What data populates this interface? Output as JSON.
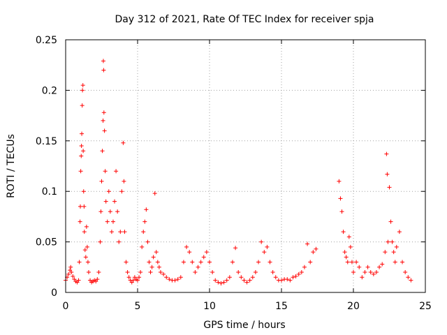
{
  "chart_data": {
    "type": "scatter",
    "title": "Day 312 of 2021, Rate Of TEC Index for receiver spja",
    "xlabel": "GPS time / hours",
    "ylabel": "ROTI / TECUs",
    "xlim": [
      0,
      25
    ],
    "ylim": [
      0,
      0.25
    ],
    "xticks": [
      0,
      5,
      10,
      15,
      20,
      25
    ],
    "xtick_labels": [
      "0",
      "5",
      "10",
      "15",
      "20",
      "25"
    ],
    "yticks": [
      0,
      0.05,
      0.1,
      0.15,
      0.2,
      0.25
    ],
    "ytick_labels": [
      "0",
      "0.05",
      "0.1",
      "0.15",
      "0.2",
      "0.25"
    ],
    "grid": true,
    "marker": "+",
    "series": [
      {
        "name": "ROTI",
        "color": "#ff0000",
        "points": [
          [
            0.0,
            0.012
          ],
          [
            0.1,
            0.015
          ],
          [
            0.2,
            0.018
          ],
          [
            0.3,
            0.022
          ],
          [
            0.35,
            0.025
          ],
          [
            0.4,
            0.02
          ],
          [
            0.5,
            0.016
          ],
          [
            0.6,
            0.013
          ],
          [
            0.7,
            0.011
          ],
          [
            0.8,
            0.01
          ],
          [
            0.9,
            0.012
          ],
          [
            0.95,
            0.03
          ],
          [
            1.0,
            0.07
          ],
          [
            1.02,
            0.085
          ],
          [
            1.05,
            0.12
          ],
          [
            1.08,
            0.135
          ],
          [
            1.1,
            0.145
          ],
          [
            1.12,
            0.157
          ],
          [
            1.15,
            0.185
          ],
          [
            1.17,
            0.2
          ],
          [
            1.2,
            0.205
          ],
          [
            1.22,
            0.14
          ],
          [
            1.25,
            0.1
          ],
          [
            1.28,
            0.085
          ],
          [
            1.3,
            0.06
          ],
          [
            1.35,
            0.042
          ],
          [
            1.4,
            0.035
          ],
          [
            1.45,
            0.065
          ],
          [
            1.5,
            0.045
          ],
          [
            1.55,
            0.03
          ],
          [
            1.6,
            0.02
          ],
          [
            1.7,
            0.012
          ],
          [
            1.8,
            0.01
          ],
          [
            1.9,
            0.011
          ],
          [
            2.0,
            0.012
          ],
          [
            2.1,
            0.011
          ],
          [
            2.2,
            0.013
          ],
          [
            2.3,
            0.02
          ],
          [
            2.4,
            0.05
          ],
          [
            2.45,
            0.08
          ],
          [
            2.5,
            0.11
          ],
          [
            2.55,
            0.14
          ],
          [
            2.6,
            0.17
          ],
          [
            2.62,
            0.229
          ],
          [
            2.64,
            0.22
          ],
          [
            2.66,
            0.178
          ],
          [
            2.7,
            0.16
          ],
          [
            2.75,
            0.12
          ],
          [
            2.8,
            0.09
          ],
          [
            2.9,
            0.07
          ],
          [
            3.0,
            0.1
          ],
          [
            3.1,
            0.08
          ],
          [
            3.2,
            0.06
          ],
          [
            3.3,
            0.07
          ],
          [
            3.4,
            0.09
          ],
          [
            3.5,
            0.12
          ],
          [
            3.6,
            0.08
          ],
          [
            3.7,
            0.05
          ],
          [
            3.8,
            0.06
          ],
          [
            3.9,
            0.1
          ],
          [
            4.0,
            0.148
          ],
          [
            4.05,
            0.11
          ],
          [
            4.1,
            0.06
          ],
          [
            4.2,
            0.03
          ],
          [
            4.3,
            0.02
          ],
          [
            4.4,
            0.015
          ],
          [
            4.5,
            0.012
          ],
          [
            4.6,
            0.01
          ],
          [
            4.7,
            0.012
          ],
          [
            4.8,
            0.015
          ],
          [
            4.9,
            0.013
          ],
          [
            5.0,
            0.012
          ],
          [
            5.1,
            0.015
          ],
          [
            5.2,
            0.02
          ],
          [
            5.3,
            0.045
          ],
          [
            5.4,
            0.06
          ],
          [
            5.5,
            0.07
          ],
          [
            5.6,
            0.082
          ],
          [
            5.7,
            0.05
          ],
          [
            5.8,
            0.03
          ],
          [
            5.9,
            0.02
          ],
          [
            6.0,
            0.025
          ],
          [
            6.1,
            0.035
          ],
          [
            6.2,
            0.098
          ],
          [
            6.3,
            0.04
          ],
          [
            6.4,
            0.03
          ],
          [
            6.5,
            0.025
          ],
          [
            6.6,
            0.02
          ],
          [
            6.8,
            0.018
          ],
          [
            7.0,
            0.015
          ],
          [
            7.2,
            0.013
          ],
          [
            7.4,
            0.012
          ],
          [
            7.6,
            0.012
          ],
          [
            7.8,
            0.013
          ],
          [
            8.0,
            0.015
          ],
          [
            8.2,
            0.03
          ],
          [
            8.4,
            0.045
          ],
          [
            8.6,
            0.04
          ],
          [
            8.8,
            0.03
          ],
          [
            9.0,
            0.02
          ],
          [
            9.2,
            0.025
          ],
          [
            9.4,
            0.03
          ],
          [
            9.6,
            0.035
          ],
          [
            9.8,
            0.04
          ],
          [
            10.0,
            0.03
          ],
          [
            10.2,
            0.02
          ],
          [
            10.4,
            0.012
          ],
          [
            10.6,
            0.01
          ],
          [
            10.8,
            0.009
          ],
          [
            11.0,
            0.01
          ],
          [
            11.2,
            0.012
          ],
          [
            11.4,
            0.015
          ],
          [
            11.6,
            0.03
          ],
          [
            11.8,
            0.044
          ],
          [
            12.0,
            0.02
          ],
          [
            12.2,
            0.015
          ],
          [
            12.4,
            0.012
          ],
          [
            12.6,
            0.01
          ],
          [
            12.8,
            0.012
          ],
          [
            13.0,
            0.015
          ],
          [
            13.2,
            0.02
          ],
          [
            13.4,
            0.03
          ],
          [
            13.6,
            0.05
          ],
          [
            13.8,
            0.04
          ],
          [
            14.0,
            0.045
          ],
          [
            14.2,
            0.03
          ],
          [
            14.4,
            0.02
          ],
          [
            14.6,
            0.015
          ],
          [
            14.8,
            0.012
          ],
          [
            15.0,
            0.012
          ],
          [
            15.2,
            0.013
          ],
          [
            15.4,
            0.013
          ],
          [
            15.6,
            0.012
          ],
          [
            15.8,
            0.015
          ],
          [
            16.0,
            0.016
          ],
          [
            16.2,
            0.018
          ],
          [
            16.4,
            0.02
          ],
          [
            16.6,
            0.025
          ],
          [
            16.8,
            0.048
          ],
          [
            17.0,
            0.03
          ],
          [
            17.2,
            0.04
          ],
          [
            17.4,
            0.043
          ],
          [
            19.0,
            0.11
          ],
          [
            19.1,
            0.093
          ],
          [
            19.2,
            0.08
          ],
          [
            19.3,
            0.06
          ],
          [
            19.4,
            0.04
          ],
          [
            19.5,
            0.035
          ],
          [
            19.6,
            0.03
          ],
          [
            19.7,
            0.055
          ],
          [
            19.8,
            0.045
          ],
          [
            19.9,
            0.03
          ],
          [
            20.0,
            0.02
          ],
          [
            20.2,
            0.03
          ],
          [
            20.4,
            0.025
          ],
          [
            20.6,
            0.015
          ],
          [
            20.8,
            0.02
          ],
          [
            21.0,
            0.025
          ],
          [
            21.2,
            0.02
          ],
          [
            21.4,
            0.018
          ],
          [
            21.6,
            0.02
          ],
          [
            21.8,
            0.025
          ],
          [
            22.0,
            0.028
          ],
          [
            22.2,
            0.04
          ],
          [
            22.3,
            0.137
          ],
          [
            22.35,
            0.117
          ],
          [
            22.4,
            0.05
          ],
          [
            22.5,
            0.104
          ],
          [
            22.6,
            0.07
          ],
          [
            22.7,
            0.05
          ],
          [
            22.8,
            0.04
          ],
          [
            22.9,
            0.03
          ],
          [
            23.0,
            0.045
          ],
          [
            23.2,
            0.06
          ],
          [
            23.4,
            0.03
          ],
          [
            23.6,
            0.02
          ],
          [
            23.8,
            0.015
          ],
          [
            24.0,
            0.012
          ]
        ]
      }
    ]
  }
}
